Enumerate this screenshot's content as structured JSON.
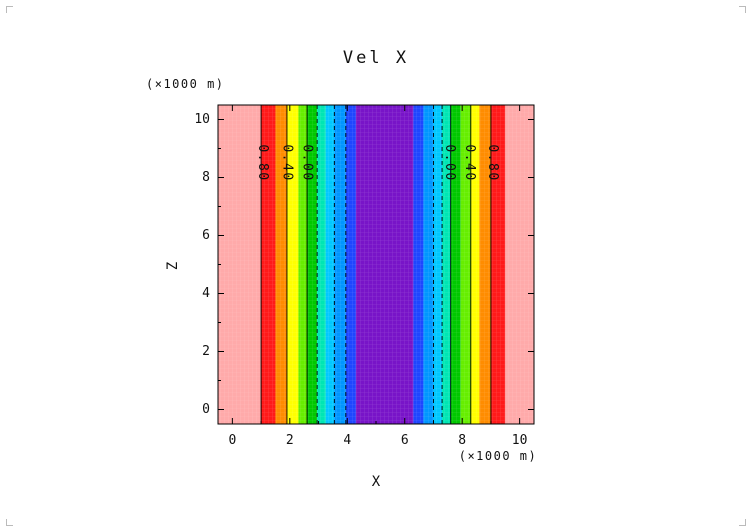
{
  "chart_data": {
    "type": "heatmap",
    "title": "Vel X",
    "xlabel": "X",
    "ylabel": "Z",
    "x_unit": "(×1000 m)",
    "y_unit": "(×1000 m)",
    "xlim": [
      -0.5,
      10.5
    ],
    "ylim": [
      -0.5,
      10.5
    ],
    "x_ticks": [
      0,
      2,
      4,
      6,
      8,
      10
    ],
    "y_ticks": [
      0,
      2,
      4,
      6,
      8,
      10
    ],
    "x_tick_labels": [
      "0",
      "2",
      "4",
      "6",
      "8",
      "10"
    ],
    "y_tick_labels": [
      "0",
      "2",
      "4",
      "6",
      "8",
      "10"
    ],
    "grid": false,
    "bands": [
      {
        "x0": -0.5,
        "x1": 1.0,
        "color": "#ffaaaa"
      },
      {
        "x0": 1.0,
        "x1": 1.5,
        "color": "#ff1a1a"
      },
      {
        "x0": 1.5,
        "x1": 1.9,
        "color": "#ff8c00"
      },
      {
        "x0": 1.9,
        "x1": 2.3,
        "color": "#ffff00"
      },
      {
        "x0": 2.3,
        "x1": 2.6,
        "color": "#66ee00"
      },
      {
        "x0": 2.6,
        "x1": 2.95,
        "color": "#00c800"
      },
      {
        "x0": 2.95,
        "x1": 3.25,
        "color": "#00e6b4"
      },
      {
        "x0": 3.25,
        "x1": 3.55,
        "color": "#00c8ff"
      },
      {
        "x0": 3.55,
        "x1": 3.95,
        "color": "#0096ff"
      },
      {
        "x0": 3.95,
        "x1": 4.3,
        "color": "#1e46ff"
      },
      {
        "x0": 4.3,
        "x1": 6.3,
        "color": "#7814c8"
      },
      {
        "x0": 6.3,
        "x1": 6.65,
        "color": "#1e46ff"
      },
      {
        "x0": 6.65,
        "x1": 7.0,
        "color": "#0096ff"
      },
      {
        "x0": 7.0,
        "x1": 7.3,
        "color": "#00c8ff"
      },
      {
        "x0": 7.3,
        "x1": 7.6,
        "color": "#00e6b4"
      },
      {
        "x0": 7.6,
        "x1": 7.95,
        "color": "#00c800"
      },
      {
        "x0": 7.95,
        "x1": 8.3,
        "color": "#66ee00"
      },
      {
        "x0": 8.3,
        "x1": 8.6,
        "color": "#ffff00"
      },
      {
        "x0": 8.6,
        "x1": 9.0,
        "color": "#ff8c00"
      },
      {
        "x0": 9.0,
        "x1": 9.5,
        "color": "#ff1a1a"
      },
      {
        "x0": 9.5,
        "x1": 10.5,
        "color": "#ffaaaa"
      }
    ],
    "contour_lines": [
      {
        "x": 1.0,
        "dashed": false
      },
      {
        "x": 1.9,
        "dashed": false
      },
      {
        "x": 2.6,
        "dashed": false
      },
      {
        "x": 2.95,
        "dashed": true
      },
      {
        "x": 3.55,
        "dashed": true
      },
      {
        "x": 3.95,
        "dashed": true
      },
      {
        "x": 7.0,
        "dashed": true
      },
      {
        "x": 7.3,
        "dashed": true
      },
      {
        "x": 7.6,
        "dashed": false
      },
      {
        "x": 8.3,
        "dashed": false
      },
      {
        "x": 9.0,
        "dashed": false
      }
    ],
    "contour_labels": [
      {
        "text": "0.80",
        "x": 1.05,
        "z": 8.5
      },
      {
        "text": "0.40",
        "x": 1.9,
        "z": 8.5
      },
      {
        "text": "0.00",
        "x": 2.6,
        "z": 8.5
      },
      {
        "text": "0.00",
        "x": 7.55,
        "z": 8.5
      },
      {
        "text": "0.40",
        "x": 8.25,
        "z": 8.5
      },
      {
        "text": "0.80",
        "x": 9.05,
        "z": 8.5
      }
    ]
  }
}
